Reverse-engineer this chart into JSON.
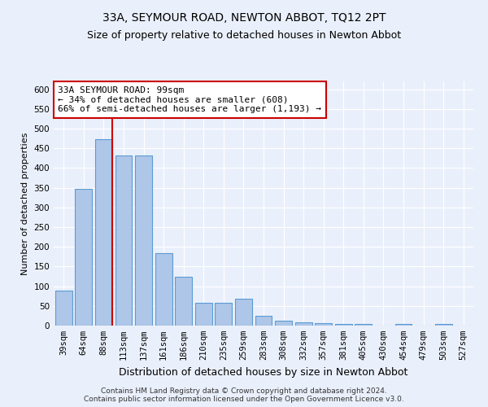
{
  "title": "33A, SEYMOUR ROAD, NEWTON ABBOT, TQ12 2PT",
  "subtitle": "Size of property relative to detached houses in Newton Abbot",
  "xlabel": "Distribution of detached houses by size in Newton Abbot",
  "ylabel": "Number of detached properties",
  "categories": [
    "39sqm",
    "64sqm",
    "88sqm",
    "113sqm",
    "137sqm",
    "161sqm",
    "186sqm",
    "210sqm",
    "235sqm",
    "259sqm",
    "283sqm",
    "308sqm",
    "332sqm",
    "357sqm",
    "381sqm",
    "405sqm",
    "430sqm",
    "454sqm",
    "479sqm",
    "503sqm",
    "527sqm"
  ],
  "values": [
    88,
    348,
    474,
    431,
    431,
    184,
    123,
    57,
    57,
    68,
    25,
    13,
    9,
    6,
    5,
    5,
    0,
    5,
    0,
    5,
    0
  ],
  "bar_color": "#aec6e8",
  "bar_edge_color": "#5b9bd5",
  "red_line_index": 2,
  "annotation_title": "33A SEYMOUR ROAD: 99sqm",
  "annotation_line1": "← 34% of detached houses are smaller (608)",
  "annotation_line2": "66% of semi-detached houses are larger (1,193) →",
  "annotation_box_color": "#ffffff",
  "annotation_box_edgecolor": "#cc0000",
  "red_line_color": "#cc0000",
  "ylim": [
    0,
    620
  ],
  "yticks": [
    0,
    50,
    100,
    150,
    200,
    250,
    300,
    350,
    400,
    450,
    500,
    550,
    600
  ],
  "footer_line1": "Contains HM Land Registry data © Crown copyright and database right 2024.",
  "footer_line2": "Contains public sector information licensed under the Open Government Licence v3.0.",
  "background_color": "#eaf0fb",
  "grid_color": "#ffffff",
  "title_fontsize": 10,
  "subtitle_fontsize": 9,
  "xlabel_fontsize": 9,
  "ylabel_fontsize": 8,
  "tick_fontsize": 7.5,
  "annotation_fontsize": 8,
  "footer_fontsize": 6.5
}
